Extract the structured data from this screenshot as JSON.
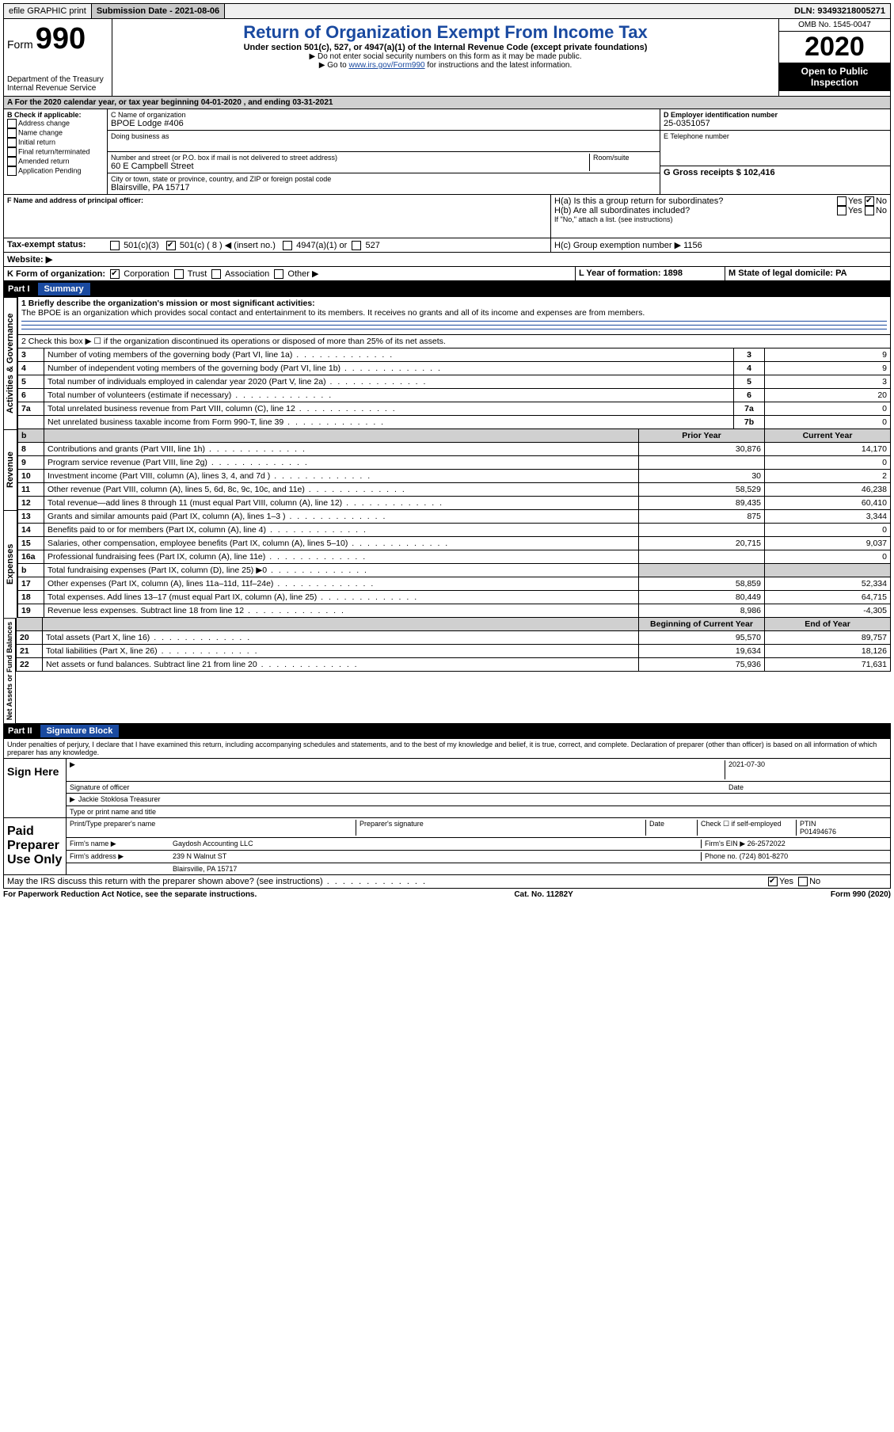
{
  "topbar": {
    "efile": "efile GRAPHIC print",
    "submission_label": "Submission Date - 2021-08-06",
    "dln": "DLN: 93493218005271"
  },
  "header": {
    "form_label": "Form",
    "form_number": "990",
    "dept1": "Department of the Treasury",
    "dept2": "Internal Revenue Service",
    "title": "Return of Organization Exempt From Income Tax",
    "subtitle": "Under section 501(c), 527, or 4947(a)(1) of the Internal Revenue Code (except private foundations)",
    "note1": "▶ Do not enter social security numbers on this form as it may be made public.",
    "note2_a": "▶ Go to ",
    "note2_link": "www.irs.gov/Form990",
    "note2_b": " for instructions and the latest information.",
    "omb": "OMB No. 1545-0047",
    "year": "2020",
    "inspection": "Open to Public Inspection"
  },
  "period": "A   For the 2020 calendar year, or tax year beginning 04-01-2020    , and ending 03-31-2021",
  "section_b": {
    "label": "B Check if applicable:",
    "items": [
      "Address change",
      "Name change",
      "Initial return",
      "Final return/terminated",
      "Amended return",
      "Application Pending"
    ]
  },
  "section_c": {
    "name_label": "C Name of organization",
    "name": "BPOE Lodge #406",
    "dba_label": "Doing business as",
    "street_label": "Number and street (or P.O. box if mail is not delivered to street address)",
    "room_label": "Room/suite",
    "street": "60 E Campbell Street",
    "city_label": "City or town, state or province, country, and ZIP or foreign postal code",
    "city": "Blairsville, PA  15717"
  },
  "section_d": {
    "ein_label": "D Employer identification number",
    "ein": "25-0351057",
    "phone_label": "E Telephone number",
    "gross_label": "G Gross receipts $ 102,416"
  },
  "section_f": {
    "label": "F  Name and address of principal officer:"
  },
  "section_h": {
    "a": "H(a)  Is this a group return for subordinates?",
    "b": "H(b)  Are all subordinates included?",
    "b_note": "If \"No,\" attach a list. (see instructions)",
    "c": "H(c)  Group exemption number ▶  1156",
    "yes": "Yes",
    "no": "No"
  },
  "tax_exempt": {
    "label": "Tax-exempt status:",
    "c3": "501(c)(3)",
    "c": "501(c) ( 8 ) ◀ (insert no.)",
    "a4947": "4947(a)(1) or",
    "s527": "527"
  },
  "website_label": "Website: ▶",
  "section_k": {
    "label": "K Form of organization:",
    "corp": "Corporation",
    "trust": "Trust",
    "assoc": "Association",
    "other": "Other ▶"
  },
  "section_l": "L Year of formation: 1898",
  "section_m": "M State of legal domicile: PA",
  "part1": {
    "header_part": "Part I",
    "header_title": "Summary",
    "q1": "1  Briefly describe the organization's mission or most significant activities:",
    "mission": "The BPOE is an organization which provides socal contact and entertainment to its members. It receives no grants and all of its income and expenses are from members.",
    "q2": "2   Check this box ▶ ☐  if the organization discontinued its operations or disposed of more than 25% of its net assets."
  },
  "side_labels": {
    "activities": "Activities & Governance",
    "revenue": "Revenue",
    "expenses": "Expenses",
    "netassets": "Net Assets or Fund Balances"
  },
  "governance": {
    "rows": [
      {
        "n": "3",
        "t": "Number of voting members of the governing body (Part VI, line 1a)",
        "b": "3",
        "v": "9"
      },
      {
        "n": "4",
        "t": "Number of independent voting members of the governing body (Part VI, line 1b)",
        "b": "4",
        "v": "9"
      },
      {
        "n": "5",
        "t": "Total number of individuals employed in calendar year 2020 (Part V, line 2a)",
        "b": "5",
        "v": "3"
      },
      {
        "n": "6",
        "t": "Total number of volunteers (estimate if necessary)",
        "b": "6",
        "v": "20"
      },
      {
        "n": "7a",
        "t": "Total unrelated business revenue from Part VIII, column (C), line 12",
        "b": "7a",
        "v": "0"
      },
      {
        "n": "",
        "t": "Net unrelated business taxable income from Form 990-T, line 39",
        "b": "7b",
        "v": "0"
      }
    ]
  },
  "col_headers": {
    "prior": "Prior Year",
    "current": "Current Year",
    "boy": "Beginning of Current Year",
    "eoy": "End of Year"
  },
  "revenue": {
    "rows": [
      {
        "n": "8",
        "t": "Contributions and grants (Part VIII, line 1h)",
        "p": "30,876",
        "c": "14,170"
      },
      {
        "n": "9",
        "t": "Program service revenue (Part VIII, line 2g)",
        "p": "",
        "c": "0"
      },
      {
        "n": "10",
        "t": "Investment income (Part VIII, column (A), lines 3, 4, and 7d )",
        "p": "30",
        "c": "2"
      },
      {
        "n": "11",
        "t": "Other revenue (Part VIII, column (A), lines 5, 6d, 8c, 9c, 10c, and 11e)",
        "p": "58,529",
        "c": "46,238"
      },
      {
        "n": "12",
        "t": "Total revenue—add lines 8 through 11 (must equal Part VIII, column (A), line 12)",
        "p": "89,435",
        "c": "60,410"
      }
    ]
  },
  "expenses": {
    "rows": [
      {
        "n": "13",
        "t": "Grants and similar amounts paid (Part IX, column (A), lines 1–3 )",
        "p": "875",
        "c": "3,344"
      },
      {
        "n": "14",
        "t": "Benefits paid to or for members (Part IX, column (A), line 4)",
        "p": "",
        "c": "0"
      },
      {
        "n": "15",
        "t": "Salaries, other compensation, employee benefits (Part IX, column (A), lines 5–10)",
        "p": "20,715",
        "c": "9,037"
      },
      {
        "n": "16a",
        "t": "Professional fundraising fees (Part IX, column (A), line 11e)",
        "p": "",
        "c": "0"
      },
      {
        "n": "b",
        "t": "Total fundraising expenses (Part IX, column (D), line 25) ▶0",
        "p": "GRAY",
        "c": "GRAY"
      },
      {
        "n": "17",
        "t": "Other expenses (Part IX, column (A), lines 11a–11d, 11f–24e)",
        "p": "58,859",
        "c": "52,334"
      },
      {
        "n": "18",
        "t": "Total expenses. Add lines 13–17 (must equal Part IX, column (A), line 25)",
        "p": "80,449",
        "c": "64,715"
      },
      {
        "n": "19",
        "t": "Revenue less expenses. Subtract line 18 from line 12",
        "p": "8,986",
        "c": "-4,305"
      }
    ]
  },
  "netassets": {
    "rows": [
      {
        "n": "20",
        "t": "Total assets (Part X, line 16)",
        "p": "95,570",
        "c": "89,757"
      },
      {
        "n": "21",
        "t": "Total liabilities (Part X, line 26)",
        "p": "19,634",
        "c": "18,126"
      },
      {
        "n": "22",
        "t": "Net assets or fund balances. Subtract line 21 from line 20",
        "p": "75,936",
        "c": "71,631"
      }
    ]
  },
  "part2": {
    "header_part": "Part II",
    "header_title": "Signature Block",
    "perjury": "Under penalties of perjury, I declare that I have examined this return, including accompanying schedules and statements, and to the best of my knowledge and belief, it is true, correct, and complete. Declaration of preparer (other than officer) is based on all information of which preparer has any knowledge."
  },
  "sign_here": {
    "label": "Sign Here",
    "sig_label": "Signature of officer",
    "date_label": "Date",
    "date": "2021-07-30",
    "name": "Jackie Stoklosa  Treasurer",
    "name_label": "Type or print name and title"
  },
  "paid_prep": {
    "label": "Paid Preparer Use Only",
    "pt_name_label": "Print/Type preparer's name",
    "sig_label": "Preparer's signature",
    "date_label": "Date",
    "check_label": "Check ☐ if self-employed",
    "ptin_label": "PTIN",
    "ptin": "P01494676",
    "firm_name_label": "Firm's name    ▶",
    "firm_name": "Gaydosh Accounting LLC",
    "firm_ein_label": "Firm's EIN ▶",
    "firm_ein": "26-2572022",
    "firm_addr_label": "Firm's address ▶",
    "firm_addr1": "239 N Walnut ST",
    "firm_addr2": "Blairsville, PA  15717",
    "phone_label": "Phone no.",
    "phone": "(724) 801-8270"
  },
  "discuss": "May the IRS discuss this return with the preparer shown above? (see instructions)",
  "footer": {
    "left": "For Paperwork Reduction Act Notice, see the separate instructions.",
    "mid": "Cat. No. 11282Y",
    "right": "Form 990 (2020)"
  }
}
